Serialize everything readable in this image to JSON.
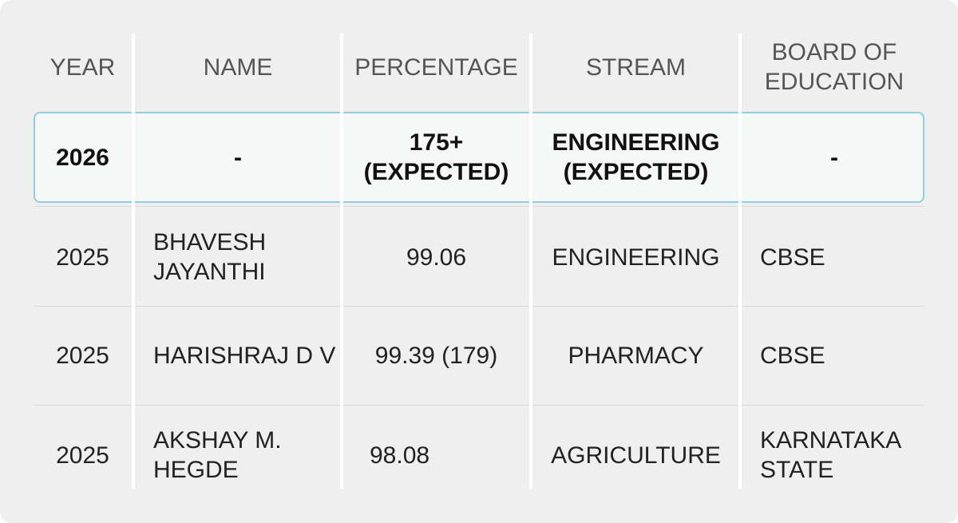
{
  "table": {
    "header": [
      "YEAR",
      "NAME",
      "PERCENTAGE",
      "STREAM",
      [
        "BOARD OF",
        "EDUCATION"
      ]
    ],
    "rows": [
      [
        "2026",
        "-",
        [
          "175+",
          "(EXPECTED)"
        ],
        [
          "ENGINEERING",
          "(EXPECTED)"
        ],
        "-"
      ],
      [
        "2025",
        [
          "BHAVESH",
          "JAYANTHI"
        ],
        "99.06",
        "ENGINEERING",
        "CBSE"
      ],
      [
        "2025",
        "HARISHRAJ D V",
        "99.39 (179)",
        "PHARMACY",
        "CBSE"
      ],
      [
        "2025",
        [
          "AKSHAY M.",
          "HEGDE"
        ],
        "98.08",
        "AGRICULTURE",
        [
          "KARNATAKA",
          "STATE"
        ]
      ]
    ]
  }
}
